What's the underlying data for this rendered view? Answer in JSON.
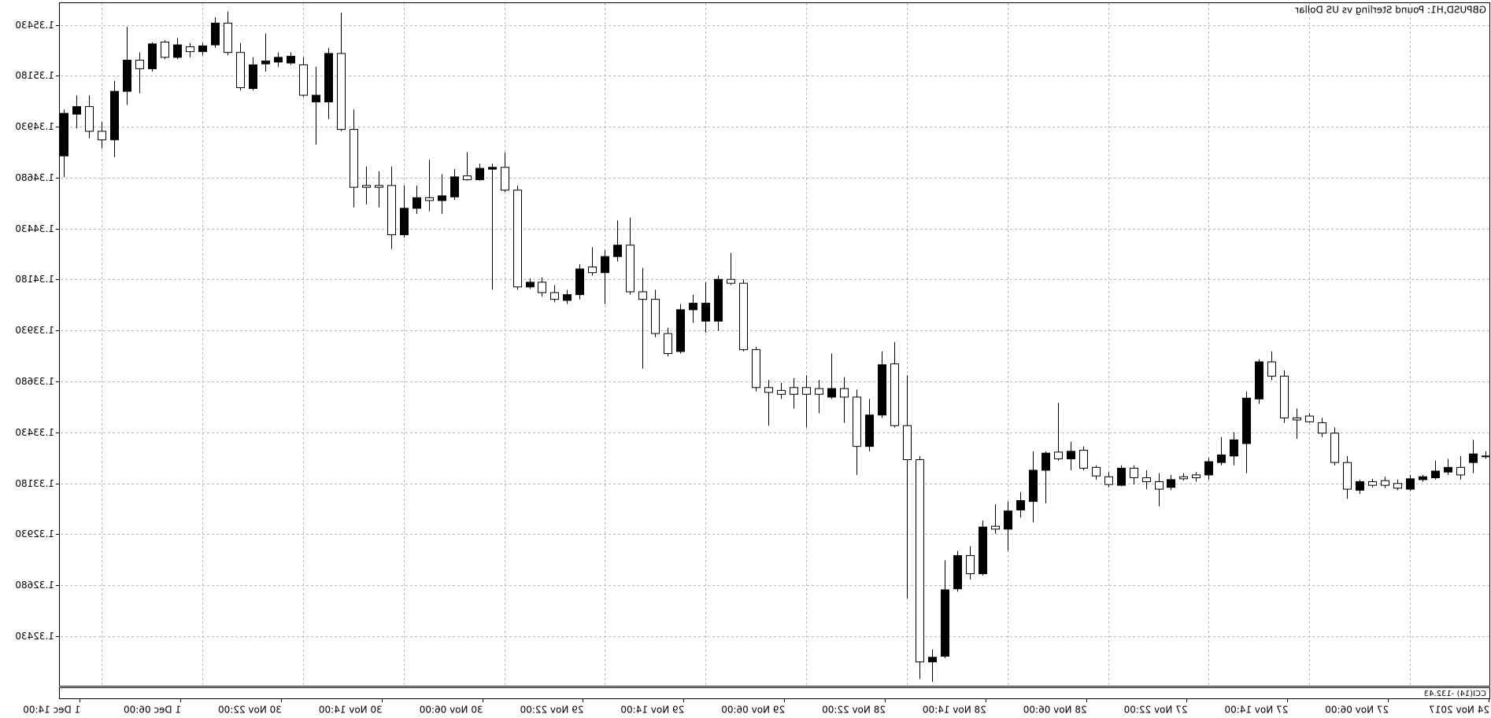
{
  "chart_data": {
    "type": "candlestick",
    "title": "GBPUSD,H1:  Pound Sterling vs US Dollar",
    "indicator_label": "CCI(14) -132.43",
    "mirrored": true,
    "grid": true,
    "up_color": "#000000",
    "down_color": "#ffffff",
    "ylim": [
      1.32186,
      1.35537
    ],
    "yticks": [
      {
        "value": 1.3243,
        "label": "1.32430"
      },
      {
        "value": 1.3268,
        "label": "1.32680"
      },
      {
        "value": 1.3293,
        "label": "1.32930"
      },
      {
        "value": 1.3318,
        "label": "1.33180"
      },
      {
        "value": 1.3343,
        "label": "1.33430"
      },
      {
        "value": 1.3368,
        "label": "1.33680"
      },
      {
        "value": 1.3393,
        "label": "1.33930"
      },
      {
        "value": 1.3418,
        "label": "1.34180"
      },
      {
        "value": 1.3443,
        "label": "1.34430"
      },
      {
        "value": 1.3468,
        "label": "1.34680"
      },
      {
        "value": 1.3493,
        "label": "1.34930"
      },
      {
        "value": 1.3518,
        "label": "1.35180"
      },
      {
        "value": 1.3543,
        "label": "1.35430"
      }
    ],
    "categories": [
      "24 Nov 2017",
      null,
      null,
      null,
      null,
      null,
      null,
      null,
      "27 Nov 06:00",
      null,
      null,
      null,
      null,
      null,
      null,
      null,
      "27 Nov 14:00",
      null,
      null,
      null,
      null,
      null,
      null,
      null,
      "27 Nov 22:00",
      null,
      null,
      null,
      null,
      null,
      null,
      null,
      "28 Nov 06:00",
      null,
      null,
      null,
      null,
      null,
      null,
      null,
      "28 Nov 14:00",
      null,
      null,
      null,
      null,
      null,
      null,
      null,
      "28 Nov 22:00",
      null,
      null,
      null,
      null,
      null,
      null,
      null,
      "29 Nov 06:00",
      null,
      null,
      null,
      null,
      null,
      null,
      null,
      "29 Nov 14:00",
      null,
      null,
      null,
      null,
      null,
      null,
      null,
      "29 Nov 22:00",
      null,
      null,
      null,
      null,
      null,
      null,
      null,
      "30 Nov 06:00",
      null,
      null,
      null,
      null,
      null,
      null,
      null,
      "30 Nov 14:00",
      null,
      null,
      null,
      null,
      null,
      null,
      null,
      "30 Nov 22:00",
      null,
      null,
      null,
      null,
      null,
      null,
      null,
      "1 Dec 06:00",
      null,
      null,
      null,
      null,
      null,
      null,
      null,
      "1 Dec 14:00",
      null
    ],
    "open": [
      1.33314,
      1.33282,
      1.33258,
      1.33235,
      1.33207,
      1.33198,
      1.33151,
      1.33179,
      1.33193,
      1.33188,
      1.33146,
      1.33282,
      1.33426,
      1.33477,
      1.3351,
      1.33501,
      1.33706,
      1.33776,
      1.33594,
      1.33375,
      1.33314,
      1.33282,
      1.33221,
      1.33221,
      1.33212,
      1.3316,
      1.33188,
      1.33207,
      1.33254,
      1.3317,
      1.33212,
      1.33258,
      1.33342,
      1.333,
      1.33333,
      1.33244,
      1.33091,
      1.33049,
      1.32955,
      1.32969,
      1.32736,
      1.32825,
      1.32662,
      1.32331,
      1.32303,
      1.33296,
      1.33463,
      1.33766,
      1.33515,
      1.33361,
      1.33603,
      1.33645,
      1.33603,
      1.33645,
      1.3365,
      1.3365,
      1.33636,
      1.3365,
      1.33836,
      1.34162,
      1.34181,
      1.33976,
      1.33976,
      1.34032,
      1.33827,
      1.33915,
      1.34083,
      1.3412,
      1.34349,
      1.34293,
      1.34214,
      1.34242,
      1.34106,
      1.34078,
      1.34116,
      1.34167,
      1.34144,
      1.34619,
      1.34731,
      1.34722,
      1.3467,
      1.34689,
      1.34586,
      1.34568,
      1.34582,
      1.3453,
      1.344,
      1.34642,
      1.34642,
      1.34642,
      1.34917,
      1.3529,
      1.35052,
      1.35052,
      1.35234,
      1.35243,
      1.35248,
      1.35239,
      1.35118,
      1.35295,
      1.35439,
      1.35332,
      1.35299,
      1.35323,
      1.35271,
      1.35346,
      1.35215,
      1.35257,
      1.35104,
      1.34866,
      1.34908,
      1.35029,
      1.34992,
      1.34787
    ],
    "high": [
      1.33337,
      1.33393,
      1.33314,
      1.333,
      1.33291,
      1.33221,
      1.33221,
      1.33198,
      1.33212,
      1.33202,
      1.33198,
      1.33314,
      1.33454,
      1.33501,
      1.33524,
      1.33547,
      1.33734,
      1.33827,
      1.33789,
      1.33631,
      1.33431,
      1.33407,
      1.33305,
      1.33235,
      1.3323,
      1.33221,
      1.3323,
      1.33244,
      1.33268,
      1.33268,
      1.33235,
      1.33268,
      1.33361,
      1.33384,
      1.33575,
      1.33337,
      1.33337,
      1.33137,
      1.33091,
      1.33077,
      1.32997,
      1.32871,
      1.32848,
      1.32802,
      1.32364,
      1.33314,
      1.3371,
      1.33873,
      1.33827,
      1.33594,
      1.3364,
      1.33701,
      1.33817,
      1.33687,
      1.3371,
      1.33696,
      1.33673,
      1.33687,
      1.3385,
      1.34181,
      1.34311,
      1.342,
      1.34167,
      1.34106,
      1.3406,
      1.33943,
      1.3413,
      1.34237,
      1.34484,
      1.3447,
      1.34325,
      1.34339,
      1.34256,
      1.3413,
      1.34153,
      1.3419,
      1.34186,
      1.34642,
      1.34805,
      1.34749,
      1.34749,
      1.34805,
      1.34722,
      1.34698,
      1.34768,
      1.34642,
      1.34642,
      1.34735,
      1.34712,
      1.34735,
      1.35015,
      1.3549,
      1.35318,
      1.35225,
      1.35271,
      1.35295,
      1.35295,
      1.35388,
      1.35271,
      1.35341,
      1.35495,
      1.35467,
      1.35341,
      1.35341,
      1.35365,
      1.35355,
      1.35346,
      1.35295,
      1.35421,
      1.35155,
      1.34955,
      1.35085,
      1.35085,
      1.35015
    ],
    "low": [
      1.333,
      1.3323,
      1.33198,
      1.33221,
      1.33198,
      1.33188,
      1.33142,
      1.33146,
      1.33156,
      1.3316,
      1.33128,
      1.33104,
      1.33268,
      1.33407,
      1.33477,
      1.33398,
      1.33477,
      1.33687,
      1.3357,
      1.3323,
      1.33268,
      1.33268,
      1.33198,
      1.33188,
      1.33193,
      1.33146,
      1.33067,
      1.33151,
      1.33174,
      1.33165,
      1.3316,
      1.33198,
      1.33244,
      1.33244,
      1.33291,
      1.33081,
      1.32988,
      1.33011,
      1.32848,
      1.32932,
      1.32727,
      1.32708,
      1.32648,
      1.32322,
      1.32205,
      1.32219,
      1.32615,
      1.33454,
      1.33501,
      1.33337,
      1.33221,
      1.33477,
      1.33594,
      1.33524,
      1.33454,
      1.33547,
      1.33594,
      1.33463,
      1.33631,
      1.33827,
      1.34153,
      1.33929,
      1.3392,
      1.33967,
      1.33817,
      1.33803,
      1.33897,
      1.33743,
      1.34106,
      1.34269,
      1.3406,
      1.342,
      1.34083,
      1.3406,
      1.34069,
      1.34097,
      1.34134,
      1.3413,
      1.3461,
      1.3413,
      1.34666,
      1.34666,
      1.34572,
      1.34502,
      1.34516,
      1.34502,
      1.34386,
      1.3433,
      1.34535,
      1.34549,
      1.34535,
      1.34908,
      1.34968,
      1.34843,
      1.35076,
      1.35234,
      1.35225,
      1.35201,
      1.35108,
      1.35108,
      1.35281,
      1.35318,
      1.35281,
      1.35271,
      1.35262,
      1.35262,
      1.35201,
      1.35094,
      1.35038,
      1.34782,
      1.34824,
      1.34875,
      1.34922,
      1.34684
    ],
    "close": [
      1.33314,
      1.33324,
      1.33221,
      1.33258,
      1.3324,
      1.33212,
      1.33202,
      1.33156,
      1.3317,
      1.3317,
      1.33188,
      1.33151,
      1.33282,
      1.33426,
      1.33482,
      1.33491,
      1.33501,
      1.33706,
      1.33776,
      1.33598,
      1.33393,
      1.33319,
      1.33286,
      1.33207,
      1.33202,
      1.33198,
      1.33151,
      1.33188,
      1.33207,
      1.33254,
      1.33174,
      1.33216,
      1.33254,
      1.33337,
      1.333,
      1.33328,
      1.33244,
      1.33095,
      1.33044,
      1.32955,
      1.32965,
      1.32736,
      1.32825,
      1.32657,
      1.32326,
      1.32303,
      1.33296,
      1.33463,
      1.33762,
      1.33515,
      1.33361,
      1.33603,
      1.33645,
      1.33617,
      1.33617,
      1.33617,
      1.33617,
      1.33626,
      1.3365,
      1.33836,
      1.34162,
      1.34181,
      1.34064,
      1.34064,
      1.34032,
      1.33817,
      1.33915,
      1.34083,
      1.3412,
      1.34349,
      1.34293,
      1.34214,
      1.34232,
      1.34106,
      1.34083,
      1.34116,
      1.34167,
      1.34144,
      1.34619,
      1.34731,
      1.34726,
      1.3467,
      1.34684,
      1.34591,
      1.34568,
      1.34582,
      1.3453,
      1.344,
      1.34633,
      1.34633,
      1.34633,
      1.34917,
      1.3529,
      1.35085,
      1.35085,
      1.35276,
      1.35271,
      1.35253,
      1.35234,
      1.35122,
      1.35295,
      1.35439,
      1.35327,
      1.35299,
      1.35332,
      1.35271,
      1.35337,
      1.35215,
      1.35257,
      1.35104,
      1.34866,
      1.34908,
      1.35029,
      1.34996
    ]
  }
}
